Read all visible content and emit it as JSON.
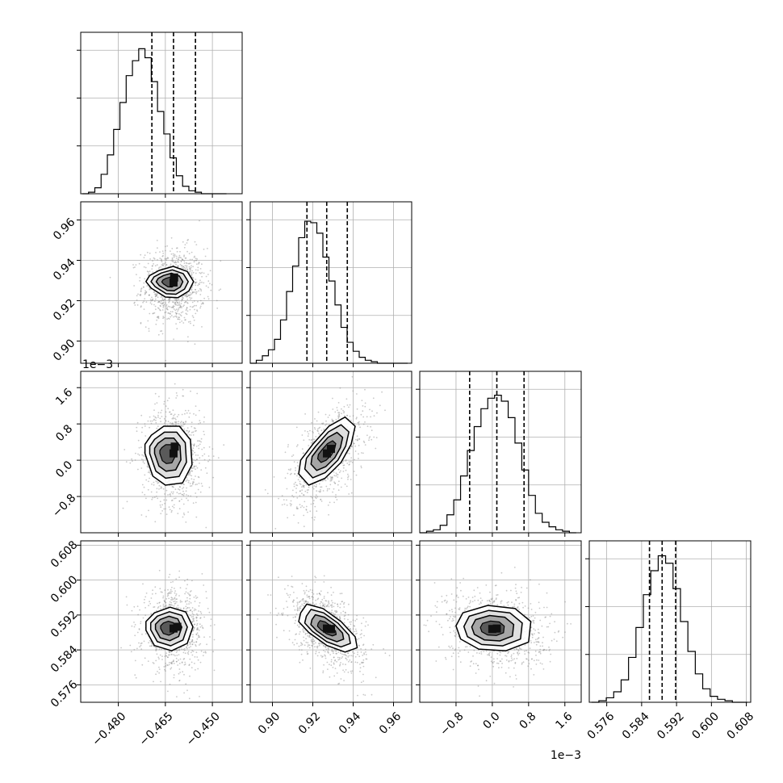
{
  "chart_data": {
    "type": "corner",
    "title": "",
    "grid": true,
    "colors": {
      "line": "#000000",
      "grid": "#b0b0b0",
      "quantile": "#000000"
    },
    "parameters": [
      {
        "range": [
          -0.492,
          -0.4405
        ],
        "ticks": [
          -0.48,
          -0.465,
          -0.45
        ],
        "tick_labels": [
          "−0.480",
          "−0.465",
          "−0.450"
        ],
        "offset_label": "",
        "quantiles": [
          -0.4693,
          -0.4624,
          -0.4554
        ],
        "hist_ymax": 1.0,
        "hist_edges": [
          -0.4915,
          -0.4895,
          -0.4875,
          -0.4855,
          -0.4835,
          -0.4815,
          -0.4795,
          -0.4775,
          -0.4755,
          -0.4735,
          -0.4715,
          -0.4695,
          -0.4675,
          -0.4655,
          -0.4635,
          -0.4615,
          -0.4595,
          -0.4575,
          -0.4555,
          -0.4535,
          -0.4515,
          -0.4495,
          -0.4475,
          -0.4455
        ],
        "hist_counts": [
          0.0,
          0.01,
          0.04,
          0.13,
          0.26,
          0.43,
          0.61,
          0.79,
          0.89,
          0.97,
          0.91,
          0.75,
          0.55,
          0.4,
          0.24,
          0.12,
          0.05,
          0.02,
          0.01,
          0.0,
          0.0,
          0.0,
          0.0
        ]
      },
      {
        "range": [
          0.889,
          0.969
        ],
        "ticks": [
          0.9,
          0.92,
          0.94,
          0.96
        ],
        "tick_labels": [
          "0.90",
          "0.92",
          "0.94",
          "0.96"
        ],
        "offset_label": "",
        "quantiles": [
          0.9171,
          0.9269,
          0.9371
        ],
        "hist_ymax": 1.0,
        "hist_edges": [
          0.889,
          0.892,
          0.895,
          0.898,
          0.901,
          0.904,
          0.907,
          0.91,
          0.913,
          0.916,
          0.919,
          0.922,
          0.925,
          0.928,
          0.931,
          0.934,
          0.937,
          0.94,
          0.943,
          0.946,
          0.949,
          0.952,
          0.955,
          0.958,
          0.961,
          0.964,
          0.967
        ],
        "hist_counts": [
          0.0,
          0.02,
          0.05,
          0.09,
          0.16,
          0.29,
          0.48,
          0.65,
          0.84,
          0.95,
          0.94,
          0.87,
          0.71,
          0.55,
          0.39,
          0.24,
          0.14,
          0.08,
          0.04,
          0.02,
          0.01,
          0.0,
          0.0,
          0.0,
          0.0,
          0.0
        ]
      },
      {
        "range": [
          -1.6,
          1.96
        ],
        "ticks": [
          -0.8,
          0.0,
          0.8,
          1.6
        ],
        "tick_labels": [
          "−0.8",
          "0.0",
          "0.8",
          "1.6"
        ],
        "offset_label": "1e−3",
        "quantiles": [
          -0.5,
          0.1,
          0.7
        ],
        "hist_ymax": 1.0,
        "hist_edges": [
          -1.6,
          -1.45,
          -1.3,
          -1.15,
          -1.0,
          -0.85,
          -0.7,
          -0.55,
          -0.4,
          -0.25,
          -0.1,
          0.05,
          0.2,
          0.35,
          0.5,
          0.65,
          0.8,
          0.95,
          1.1,
          1.25,
          1.4,
          1.55,
          1.7,
          1.85
        ],
        "hist_counts": [
          0.0,
          0.01,
          0.02,
          0.05,
          0.12,
          0.22,
          0.38,
          0.55,
          0.71,
          0.83,
          0.9,
          0.92,
          0.88,
          0.77,
          0.6,
          0.42,
          0.25,
          0.13,
          0.07,
          0.04,
          0.02,
          0.01,
          0.0
        ]
      },
      {
        "range": [
          0.572,
          0.609
        ],
        "ticks": [
          0.576,
          0.584,
          0.592,
          0.6,
          0.608
        ],
        "tick_labels": [
          "0.576",
          "0.584",
          "0.592",
          "0.600",
          "0.608"
        ],
        "offset_label": "",
        "quantiles": [
          0.5858,
          0.5887,
          0.5918
        ],
        "hist_ymax": 1.0,
        "hist_edges": [
          0.5725,
          0.5742,
          0.5759,
          0.5776,
          0.5793,
          0.581,
          0.5827,
          0.5844,
          0.5861,
          0.5878,
          0.5895,
          0.5912,
          0.5929,
          0.5946,
          0.5963,
          0.598,
          0.5997,
          0.6014,
          0.6031,
          0.6048,
          0.6065,
          0.6082
        ],
        "hist_counts": [
          0.0,
          0.01,
          0.03,
          0.07,
          0.15,
          0.3,
          0.5,
          0.72,
          0.88,
          0.98,
          0.93,
          0.76,
          0.54,
          0.34,
          0.19,
          0.09,
          0.04,
          0.02,
          0.01,
          0.0,
          0.0
        ]
      }
    ],
    "pairs": [
      {
        "row": 1,
        "col": 0,
        "y_offset_label": "",
        "points": {
          "mean": [
            -0.4624,
            0.927
          ],
          "sd": [
            0.005,
            0.0095
          ],
          "rho": 0.0,
          "n": 900
        },
        "density_peaks": [
          [
            -0.4624,
            0.929
          ],
          [
            -0.4622,
            0.9315
          ]
        ],
        "contours": [
          [
            -0.4712,
            0.9295
          ],
          [
            -0.4695,
            0.9262
          ],
          [
            -0.465,
            0.9218
          ],
          [
            -0.461,
            0.9215
          ],
          [
            -0.4575,
            0.9248
          ],
          [
            -0.456,
            0.9295
          ],
          [
            -0.458,
            0.9345
          ],
          [
            -0.4625,
            0.937
          ],
          [
            -0.467,
            0.935
          ],
          [
            -0.47,
            0.9325
          ]
        ]
      },
      {
        "row": 2,
        "col": 0,
        "y_offset_label": "1e−3",
        "points": {
          "mean": [
            -0.4624,
            0.1
          ],
          "sd": [
            0.005,
            0.55
          ],
          "rho": 0.0,
          "n": 900
        },
        "density_peaks": [
          [
            -0.4624,
            0.15
          ],
          [
            -0.462,
            0.3
          ]
        ],
        "contours": [
          [
            -0.4715,
            0.15
          ],
          [
            -0.469,
            -0.35
          ],
          [
            -0.465,
            -0.55
          ],
          [
            -0.4595,
            -0.5
          ],
          [
            -0.4565,
            -0.1
          ],
          [
            -0.457,
            0.45
          ],
          [
            -0.4605,
            0.75
          ],
          [
            -0.4655,
            0.75
          ],
          [
            -0.4695,
            0.55
          ],
          [
            -0.4715,
            0.35
          ]
        ]
      },
      {
        "row": 2,
        "col": 1,
        "y_offset_label": "",
        "points": {
          "mean": [
            0.927,
            0.1
          ],
          "sd": [
            0.0095,
            0.55
          ],
          "rho": 0.55,
          "n": 900
        },
        "density_peaks": [
          [
            0.927,
            0.15
          ],
          [
            0.929,
            0.25
          ]
        ],
        "contours": [
          [
            0.913,
            -0.3
          ],
          [
            0.918,
            -0.55
          ],
          [
            0.926,
            -0.4
          ],
          [
            0.934,
            -0.05
          ],
          [
            0.939,
            0.35
          ],
          [
            0.941,
            0.75
          ],
          [
            0.936,
            0.95
          ],
          [
            0.928,
            0.75
          ],
          [
            0.92,
            0.35
          ],
          [
            0.914,
            0.0
          ]
        ]
      },
      {
        "row": 3,
        "col": 0,
        "y_offset_label": "",
        "points": {
          "mean": [
            -0.4624,
            0.5887
          ],
          "sd": [
            0.005,
            0.0045
          ],
          "rho": 0.0,
          "n": 900
        },
        "density_peaks": [
          [
            -0.4624,
            0.5889
          ],
          [
            -0.4612,
            0.5893
          ]
        ],
        "contours": [
          [
            -0.4712,
            0.5885
          ],
          [
            -0.4685,
            0.585
          ],
          [
            -0.463,
            0.5838
          ],
          [
            -0.458,
            0.5855
          ],
          [
            -0.4562,
            0.5893
          ],
          [
            -0.4585,
            0.5927
          ],
          [
            -0.4635,
            0.5938
          ],
          [
            -0.4685,
            0.5925
          ],
          [
            -0.4712,
            0.5905
          ]
        ]
      },
      {
        "row": 3,
        "col": 1,
        "y_offset_label": "",
        "points": {
          "mean": [
            0.927,
            0.5887
          ],
          "sd": [
            0.0095,
            0.0045
          ],
          "rho": -0.5,
          "n": 900
        },
        "density_peaks": [
          [
            0.927,
            0.5889
          ],
          [
            0.929,
            0.5888
          ]
        ],
        "contours": [
          [
            0.914,
            0.5925
          ],
          [
            0.917,
            0.5945
          ],
          [
            0.925,
            0.5935
          ],
          [
            0.934,
            0.5905
          ],
          [
            0.941,
            0.587
          ],
          [
            0.942,
            0.5845
          ],
          [
            0.936,
            0.5835
          ],
          [
            0.927,
            0.585
          ],
          [
            0.918,
            0.588
          ],
          [
            0.913,
            0.5905
          ]
        ]
      },
      {
        "row": 3,
        "col": 2,
        "y_offset_label": "",
        "points": {
          "mean": [
            0.1,
            0.5887
          ],
          "sd": [
            0.55,
            0.0045
          ],
          "rho": -0.15,
          "n": 900
        },
        "density_peaks": [
          [
            0.1,
            0.5889
          ],
          [
            0.0,
            0.5888
          ]
        ],
        "contours": [
          [
            -0.8,
            0.5895
          ],
          [
            -0.65,
            0.5925
          ],
          [
            -0.1,
            0.5942
          ],
          [
            0.5,
            0.5935
          ],
          [
            0.85,
            0.5905
          ],
          [
            0.8,
            0.5858
          ],
          [
            0.3,
            0.5838
          ],
          [
            -0.3,
            0.5842
          ],
          [
            -0.7,
            0.5865
          ]
        ]
      }
    ]
  }
}
